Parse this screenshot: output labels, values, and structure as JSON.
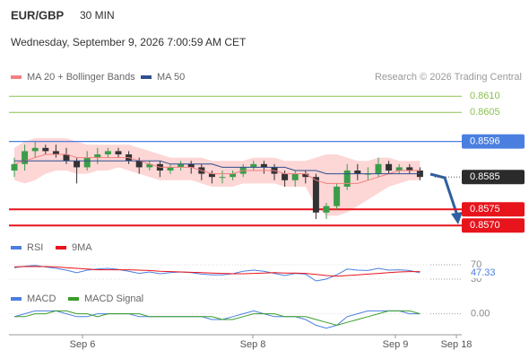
{
  "header": {
    "symbol": "EUR/GBP",
    "timeframe": "30 MIN",
    "datetime": "Wednesday, September 9, 2026 7:00:59 AM CET"
  },
  "chart_data": [
    {
      "type": "candlestick",
      "credit": "Research © 2026 Trading Central",
      "ylim": [
        0.8567,
        0.8614
      ],
      "xtick_labels": [
        "Sep 6",
        "Sep 8",
        "Sep 9",
        "Sep 18"
      ],
      "up_color": "#3a9d4a",
      "down_color": "#333333",
      "ohlc": {
        "open": [
          0.8587,
          0.8589,
          0.8593,
          0.8594,
          0.8593,
          0.8592,
          0.859,
          0.8588,
          0.8591,
          0.8592,
          0.8593,
          0.8592,
          0.859,
          0.8588,
          0.8589,
          0.8587,
          0.8588,
          0.8589,
          0.8588,
          0.8586,
          0.8585,
          0.8585,
          0.8586,
          0.8588,
          0.8589,
          0.8588,
          0.8586,
          0.8584,
          0.8586,
          0.8585,
          0.8574,
          0.8576,
          0.8582,
          0.8587,
          0.8586,
          0.8586,
          0.8589,
          0.8587,
          0.8588,
          0.8587
        ],
        "high": [
          0.8591,
          0.8595,
          0.8596,
          0.8595,
          0.8595,
          0.8594,
          0.8591,
          0.8593,
          0.8594,
          0.8594,
          0.8594,
          0.8593,
          0.8591,
          0.859,
          0.859,
          0.8589,
          0.859,
          0.859,
          0.8589,
          0.8587,
          0.8587,
          0.8587,
          0.8589,
          0.859,
          0.859,
          0.8589,
          0.8587,
          0.8587,
          0.8587,
          0.8586,
          0.8577,
          0.8583,
          0.8589,
          0.8589,
          0.8588,
          0.8591,
          0.859,
          0.8589,
          0.8589,
          0.8588
        ],
        "low": [
          0.8585,
          0.8587,
          0.8591,
          0.8592,
          0.8591,
          0.8589,
          0.8583,
          0.8587,
          0.8589,
          0.8591,
          0.8591,
          0.8589,
          0.8586,
          0.8587,
          0.8585,
          0.8586,
          0.8587,
          0.8586,
          0.8584,
          0.8583,
          0.8583,
          0.8584,
          0.8585,
          0.8587,
          0.8586,
          0.8584,
          0.8582,
          0.8582,
          0.8583,
          0.8572,
          0.8572,
          0.8575,
          0.8581,
          0.8584,
          0.8584,
          0.8585,
          0.8586,
          0.8586,
          0.8586,
          0.8584
        ],
        "close": [
          0.8589,
          0.8593,
          0.8594,
          0.8593,
          0.8592,
          0.859,
          0.8588,
          0.8591,
          0.8592,
          0.8593,
          0.8592,
          0.859,
          0.8588,
          0.8589,
          0.8587,
          0.8588,
          0.8589,
          0.8588,
          0.8586,
          0.8585,
          0.8585,
          0.8586,
          0.8588,
          0.8589,
          0.8588,
          0.8586,
          0.8584,
          0.8586,
          0.8585,
          0.8574,
          0.8576,
          0.8582,
          0.8587,
          0.8586,
          0.8586,
          0.8589,
          0.8587,
          0.8588,
          0.8587,
          0.8585
        ]
      },
      "series": [
        {
          "name": "MA 20 + Bollinger Bands",
          "color": "#f28080",
          "values": [
            0.8589,
            0.859,
            0.8591,
            0.8592,
            0.8592,
            0.8592,
            0.8591,
            0.8591,
            0.8591,
            0.8591,
            0.8591,
            0.8591,
            0.859,
            0.8589,
            0.8588,
            0.8588,
            0.8588,
            0.8588,
            0.8587,
            0.8586,
            0.8586,
            0.8586,
            0.8587,
            0.8587,
            0.8587,
            0.8587,
            0.8586,
            0.8586,
            0.8586,
            0.8584,
            0.8583,
            0.8583,
            0.8583,
            0.8583,
            0.8584,
            0.8585,
            0.8586,
            0.8587,
            0.8587,
            0.8587
          ],
          "band_color": "#fdd6d6",
          "upper": [
            0.8594,
            0.8596,
            0.8597,
            0.8597,
            0.8597,
            0.8597,
            0.8596,
            0.8595,
            0.8595,
            0.8595,
            0.8595,
            0.8595,
            0.8594,
            0.8593,
            0.8592,
            0.8591,
            0.8591,
            0.8591,
            0.8591,
            0.859,
            0.859,
            0.859,
            0.859,
            0.8591,
            0.8591,
            0.8591,
            0.859,
            0.859,
            0.859,
            0.8591,
            0.8592,
            0.8592,
            0.8591,
            0.859,
            0.859,
            0.8591,
            0.8591,
            0.859,
            0.859,
            0.859
          ],
          "lower": [
            0.8584,
            0.8583,
            0.8584,
            0.8586,
            0.8587,
            0.8587,
            0.8586,
            0.8586,
            0.8587,
            0.8587,
            0.8588,
            0.8587,
            0.8586,
            0.8585,
            0.8584,
            0.8584,
            0.8584,
            0.8584,
            0.8583,
            0.8582,
            0.8582,
            0.8582,
            0.8583,
            0.8583,
            0.8583,
            0.8583,
            0.8582,
            0.8582,
            0.8582,
            0.8576,
            0.8573,
            0.8573,
            0.8574,
            0.8576,
            0.8578,
            0.858,
            0.8582,
            0.8583,
            0.8584,
            0.8584
          ]
        },
        {
          "name": "MA 50",
          "color": "#2f4f8f",
          "values": [
            0.859,
            0.859,
            0.859,
            0.859,
            0.859,
            0.859,
            0.859,
            0.859,
            0.859,
            0.859,
            0.859,
            0.859,
            0.859,
            0.859,
            0.859,
            0.8589,
            0.8589,
            0.8589,
            0.8589,
            0.8589,
            0.8588,
            0.8588,
            0.8588,
            0.8588,
            0.8588,
            0.8588,
            0.8588,
            0.8587,
            0.8587,
            0.8587,
            0.8586,
            0.8586,
            0.8586,
            0.8586,
            0.8586,
            0.8586,
            0.8586,
            0.8586,
            0.8586,
            0.8586
          ]
        }
      ],
      "levels": [
        {
          "value": 0.861,
          "label": "0.8610",
          "color": "#8cc152",
          "boxed": false
        },
        {
          "value": 0.8605,
          "label": "0.8605",
          "color": "#8cc152",
          "boxed": false
        },
        {
          "value": 0.8596,
          "label": "0.8596",
          "color": "#4a7fe0",
          "boxed": true
        },
        {
          "value": 0.8575,
          "label": "0.8575",
          "color": "#e8141c",
          "boxed": true
        },
        {
          "value": 0.857,
          "label": "0.8570",
          "color": "#e8141c",
          "boxed": true
        }
      ],
      "last_price": {
        "value": 0.8585,
        "label": "0.8585",
        "color": "#2b2b2b"
      }
    },
    {
      "type": "line",
      "ylim": [
        20,
        90
      ],
      "yticks": [
        30,
        70
      ],
      "current_value": 47.33,
      "series": [
        {
          "name": "RSI",
          "color": "#4a7fe0",
          "values": [
            62,
            66,
            68,
            64,
            60,
            55,
            48,
            55,
            58,
            60,
            57,
            52,
            46,
            50,
            45,
            48,
            50,
            48,
            44,
            42,
            42,
            45,
            52,
            55,
            52,
            46,
            40,
            46,
            44,
            25,
            30,
            42,
            58,
            55,
            54,
            60,
            55,
            56,
            54,
            47.33
          ]
        },
        {
          "name": "9MA",
          "color": "#e8141c",
          "values": [
            64,
            65,
            65,
            65,
            64,
            62,
            60,
            58,
            56,
            56,
            56,
            56,
            55,
            54,
            52,
            51,
            50,
            49,
            48,
            47,
            46,
            45,
            45,
            46,
            47,
            48,
            47,
            47,
            46,
            43,
            40,
            38,
            40,
            42,
            44,
            46,
            48,
            50,
            51,
            51
          ]
        }
      ]
    },
    {
      "type": "line",
      "ylim": [
        -0.0007,
        0.0003
      ],
      "yticks": [
        {
          "value": 0,
          "label": "0.00"
        }
      ],
      "series": [
        {
          "name": "MACD",
          "color": "#4a7fe0",
          "values": [
            -0.0001,
            0,
            0.0001,
            0.0001,
            0.0001,
            0,
            -0.0001,
            -0.0001,
            0,
            0,
            0,
            0,
            -0.0001,
            -0.0001,
            -0.0001,
            -0.0001,
            -0.0001,
            -0.0001,
            -0.0001,
            -0.0002,
            -0.0002,
            -0.0001,
            0,
            0.0001,
            0,
            -0.0001,
            -0.0001,
            -0.0001,
            -0.0002,
            -0.0004,
            -0.0005,
            -0.0004,
            -0.0001,
            0,
            0.0001,
            0.0001,
            0.0001,
            0.0001,
            0,
            0
          ]
        },
        {
          "name": "MACD Signal",
          "color": "#3a9d2a",
          "values": [
            -0.0001,
            -0.0001,
            0,
            0,
            0.0001,
            0.0001,
            0,
            0,
            -0.0001,
            0,
            0,
            0,
            0,
            -0.0001,
            -0.0001,
            -0.0001,
            -0.0001,
            -0.0001,
            -0.0001,
            -0.0001,
            -0.0002,
            -0.0002,
            -0.0001,
            0,
            0,
            0,
            -0.0001,
            -0.0001,
            -0.0001,
            -0.0002,
            -0.0003,
            -0.0004,
            -0.0003,
            -0.0002,
            -0.0001,
            0,
            0.0001,
            0.0001,
            0.0001,
            0
          ]
        }
      ]
    }
  ]
}
